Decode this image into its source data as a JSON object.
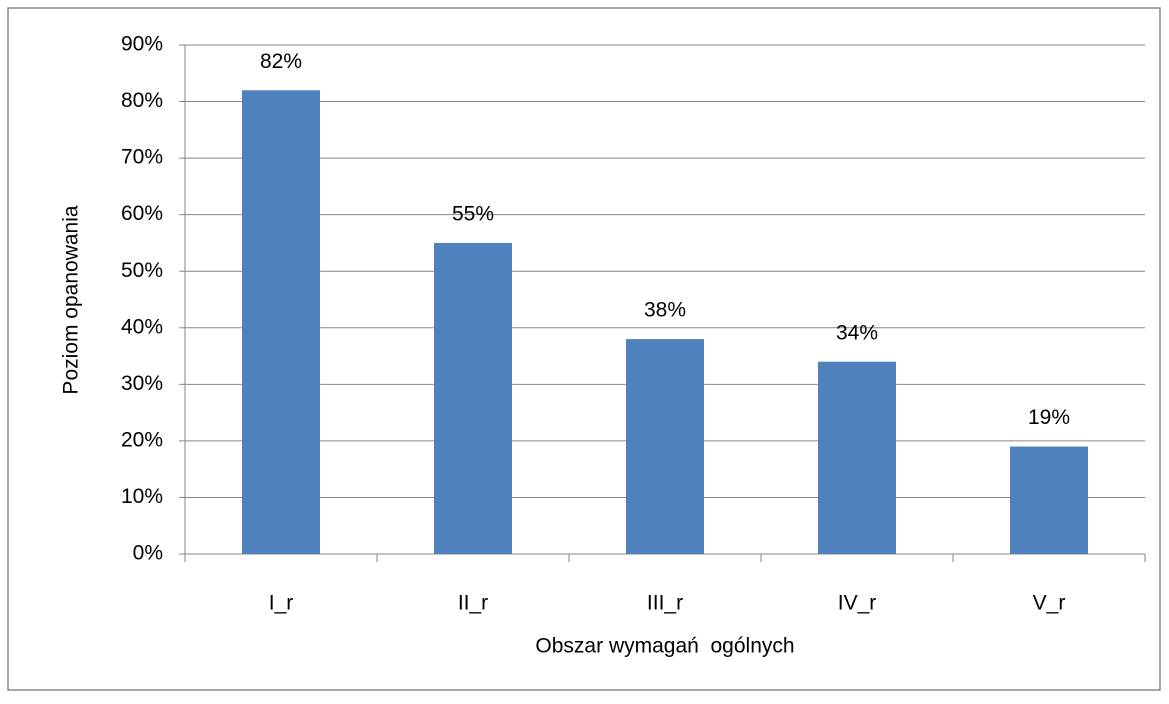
{
  "chart_data": {
    "type": "bar",
    "xlabel": "Obszar wymagań  ogólnych",
    "ylabel": "Poziom opanowania",
    "categories": [
      "I_r",
      "II_r",
      "III_r",
      "IV_r",
      "V_r"
    ],
    "values": [
      82,
      55,
      38,
      34,
      19
    ],
    "value_labels": [
      "82%",
      "55%",
      "38%",
      "34%",
      "19%"
    ],
    "color": "#4f81bd",
    "ylim": [
      0,
      90
    ],
    "yticks": [
      {
        "value": 0,
        "label": "0%"
      },
      {
        "value": 10,
        "label": "10%"
      },
      {
        "value": 20,
        "label": "20%"
      },
      {
        "value": 30,
        "label": "30%"
      },
      {
        "value": 40,
        "label": "40%"
      },
      {
        "value": 50,
        "label": "50%"
      },
      {
        "value": 60,
        "label": "60%"
      },
      {
        "value": 70,
        "label": "70%"
      },
      {
        "value": 80,
        "label": "80%"
      },
      {
        "value": 90,
        "label": "90%"
      }
    ],
    "grid": true
  }
}
